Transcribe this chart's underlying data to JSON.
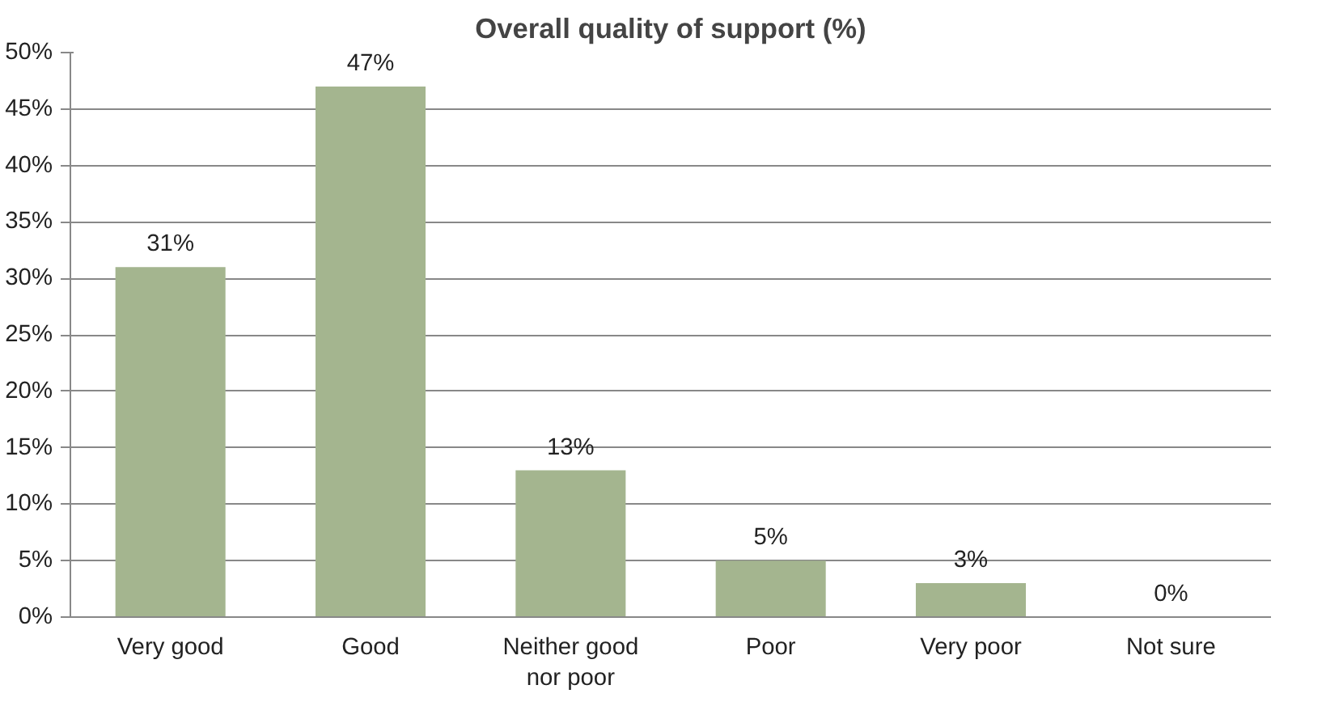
{
  "chart_data": {
    "type": "bar",
    "title": "Overall quality of support (%)",
    "categories": [
      "Very good",
      "Good",
      "Neither good\nnor poor",
      "Poor",
      "Very poor",
      "Not sure"
    ],
    "values": [
      31,
      47,
      13,
      5,
      3,
      0
    ],
    "value_labels": [
      "31%",
      "47%",
      "13%",
      "5%",
      "3%",
      "0%"
    ],
    "color": "#a4b58f",
    "ylim": [
      0,
      50
    ],
    "yticks": [
      {
        "value": 0,
        "label": "0%"
      },
      {
        "value": 5,
        "label": "5%"
      },
      {
        "value": 10,
        "label": "10%"
      },
      {
        "value": 15,
        "label": "15%"
      },
      {
        "value": 20,
        "label": "20%"
      },
      {
        "value": 25,
        "label": "25%"
      },
      {
        "value": 30,
        "label": "30%"
      },
      {
        "value": 35,
        "label": "35%"
      },
      {
        "value": 40,
        "label": "40%"
      },
      {
        "value": 45,
        "label": "45%"
      },
      {
        "value": 50,
        "label": "50%"
      }
    ],
    "grid": "y"
  }
}
